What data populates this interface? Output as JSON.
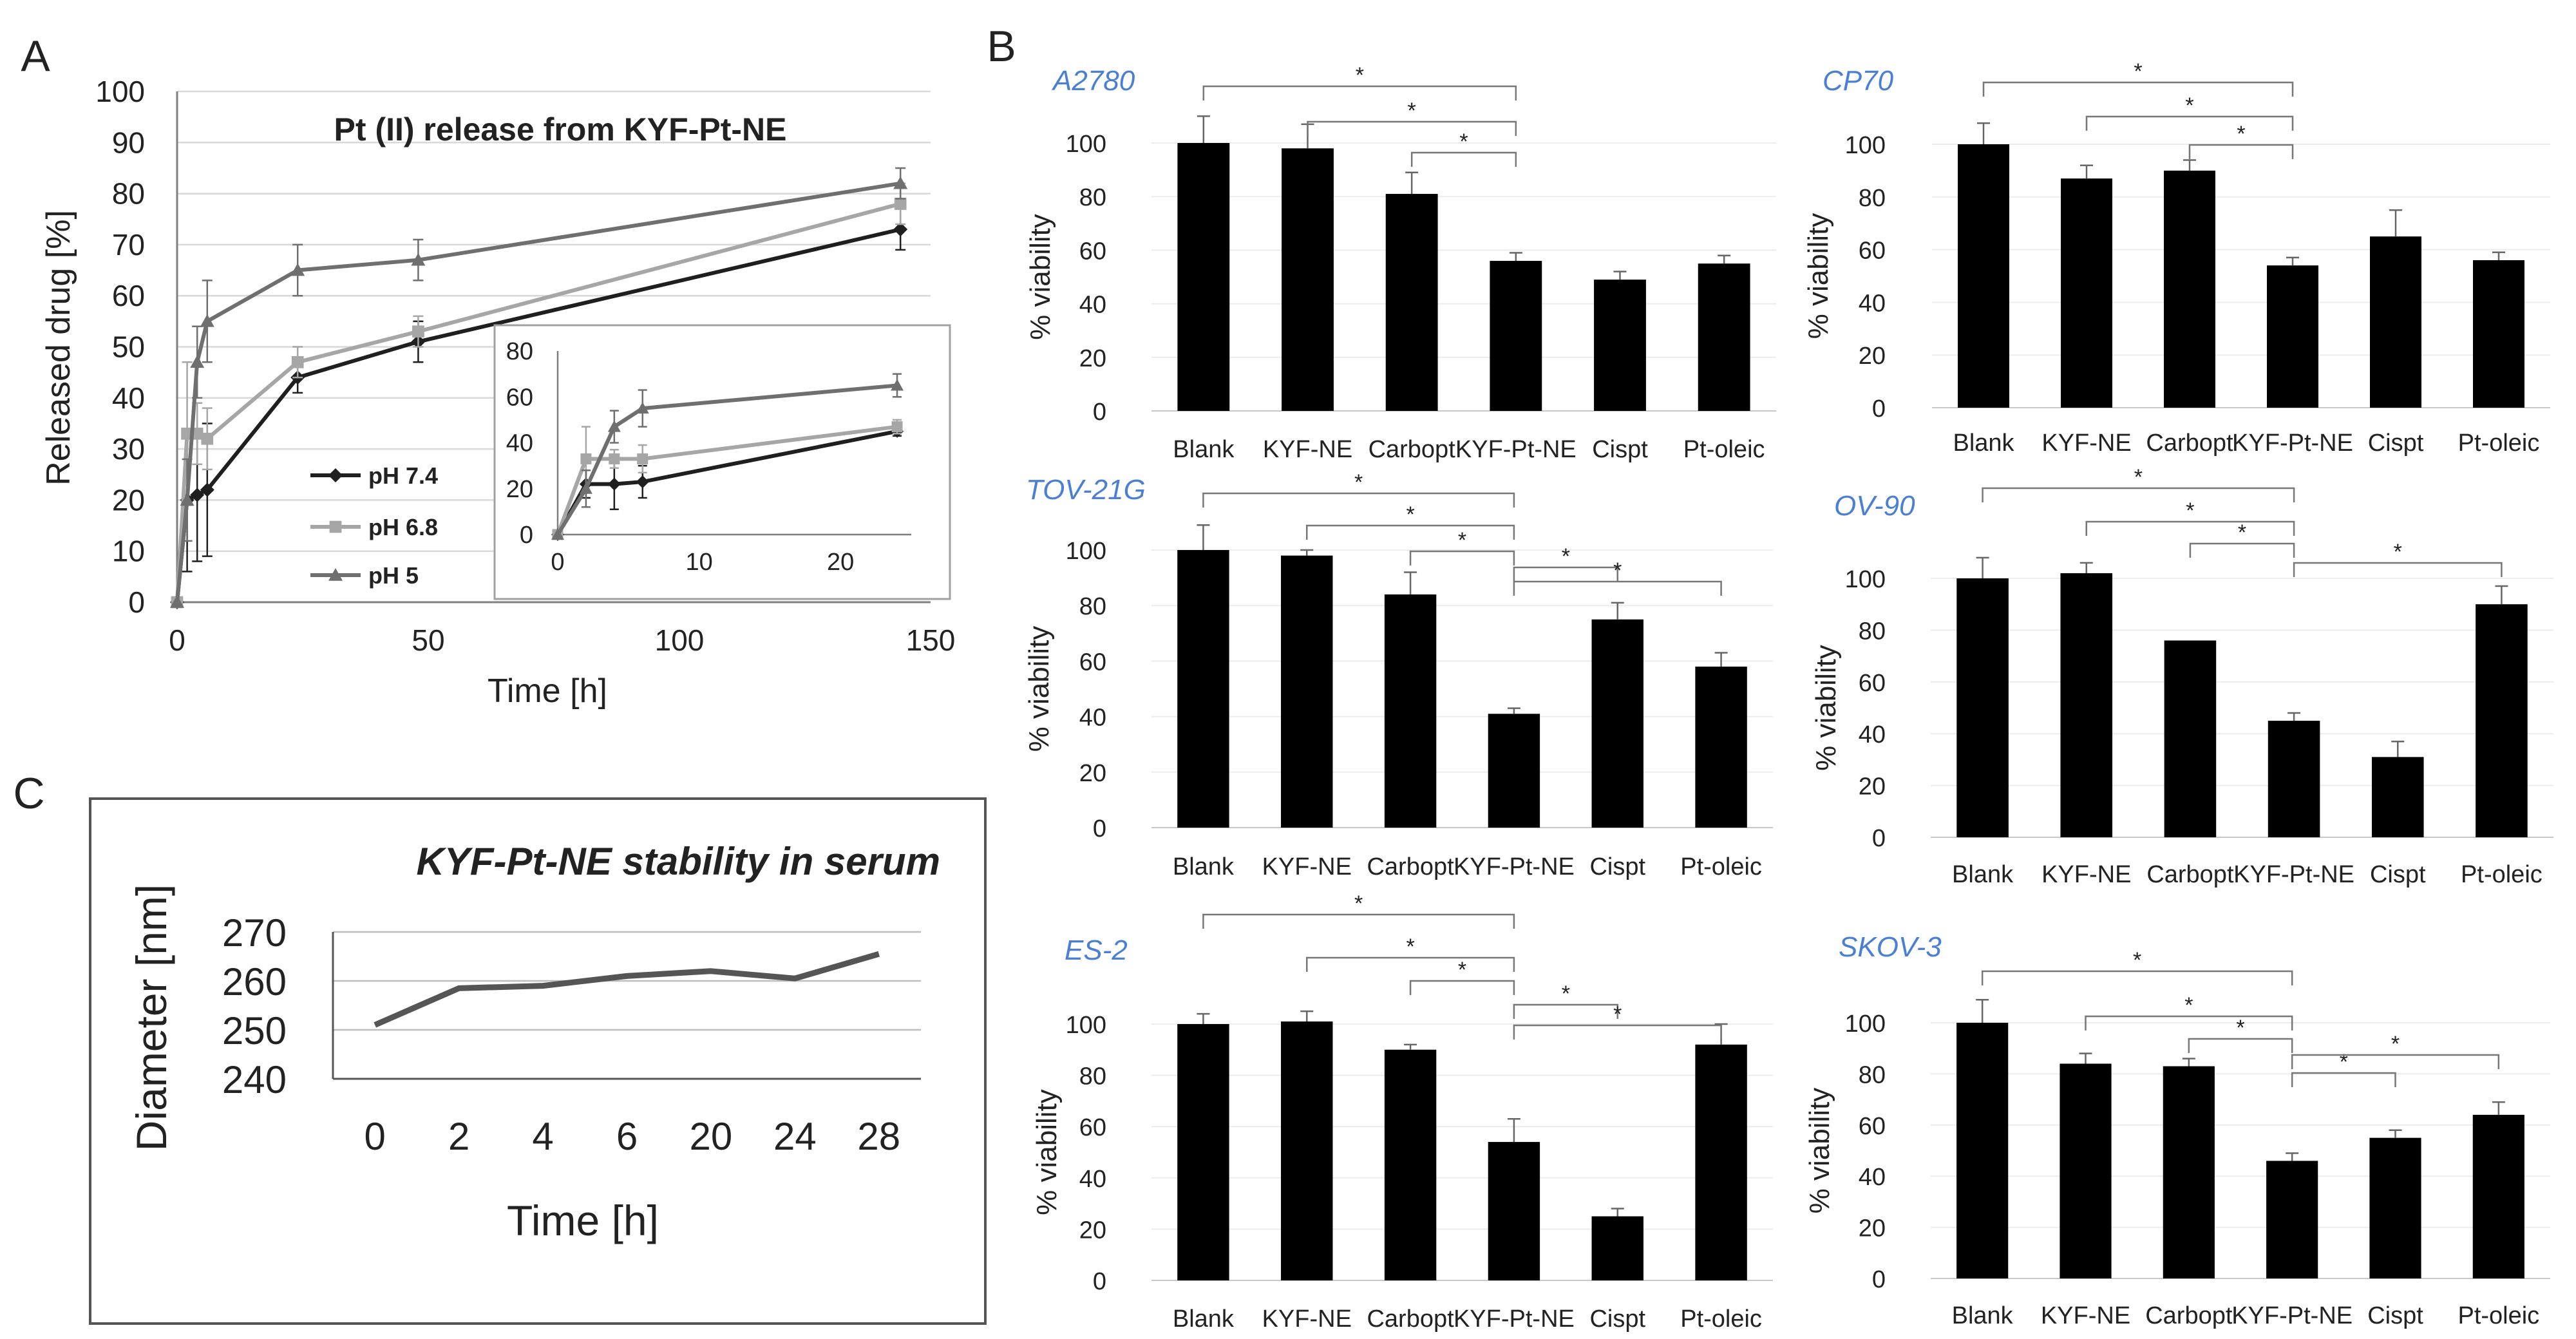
{
  "colors": {
    "black": "#000000",
    "axis": "#7f7f7f",
    "grid": "#d9d9d9",
    "ph74": "#1f1f1f",
    "ph68": "#a6a6a6",
    "ph5": "#6f6f6f",
    "cellLabel": "#4a7fd4",
    "serumLine": "#555555"
  },
  "chart_data": [
    {
      "id": "A",
      "panel_label": "A",
      "type": "line",
      "title": "Pt (II) release from KYF-Pt-NE",
      "xlabel": "Time [h]",
      "ylabel": "Released drug [%]",
      "xlim": [
        0,
        150
      ],
      "ylim": [
        0,
        100
      ],
      "xticks": [
        "0",
        "50",
        "100",
        "150"
      ],
      "yticks": [
        "0",
        "10",
        "20",
        "30",
        "40",
        "50",
        "60",
        "70",
        "80",
        "90",
        "100"
      ],
      "x": [
        0,
        2,
        4,
        6,
        24,
        48,
        144
      ],
      "series": [
        {
          "name": "pH 7.4",
          "marker": "diamond",
          "values": [
            0,
            20,
            21,
            22,
            44,
            51,
            73
          ],
          "errors": [
            0,
            14,
            13,
            13,
            3,
            4,
            4
          ]
        },
        {
          "name": "pH 6.8",
          "marker": "square",
          "values": [
            0,
            33,
            33,
            32,
            47,
            53,
            78
          ],
          "errors": [
            0,
            14,
            6,
            6,
            3,
            3,
            4
          ]
        },
        {
          "name": "pH 5",
          "marker": "triangle",
          "values": [
            0,
            20,
            47,
            55,
            65,
            67,
            82
          ],
          "errors": [
            0,
            8,
            7,
            8,
            5,
            4,
            3
          ]
        }
      ],
      "inset": {
        "xlim": [
          0,
          25
        ],
        "ylim": [
          0,
          80
        ],
        "xticks": [
          "0",
          "10",
          "20"
        ],
        "yticks": [
          "0",
          "20",
          "40",
          "60",
          "80"
        ],
        "x": [
          0,
          2,
          4,
          6,
          24
        ],
        "series": [
          {
            "name": "pH 7.4",
            "values": [
              0,
              22,
              22,
              23,
              45
            ],
            "errors": [
              0,
              6,
              11,
              7,
              2
            ]
          },
          {
            "name": "pH 6.8",
            "values": [
              0,
              33,
              33,
              33,
              47
            ],
            "errors": [
              0,
              14,
              4,
              6,
              3
            ]
          },
          {
            "name": "pH 5",
            "values": [
              0,
              20,
              47,
              55,
              65
            ],
            "errors": [
              0,
              8,
              7,
              8,
              5
            ]
          }
        ]
      }
    },
    {
      "id": "B1",
      "panel_label": "B",
      "type": "bar",
      "cell_line": "A2780",
      "ylabel": "% viability",
      "ylim": [
        0,
        100
      ],
      "yticks": [
        "0",
        "20",
        "40",
        "60",
        "80",
        "100"
      ],
      "categories": [
        "Blank",
        "KYF-NE",
        "Carbopt",
        "KYF-Pt-NE",
        "Cispt",
        "Pt-oleic"
      ],
      "values": [
        100,
        98,
        81,
        56,
        49,
        55
      ],
      "errors": [
        10,
        9,
        8,
        3,
        3,
        3
      ],
      "significance": [
        {
          "from": 0,
          "to": 3,
          "label": "*"
        },
        {
          "from": 1,
          "to": 3,
          "label": "*"
        },
        {
          "from": 2,
          "to": 3,
          "label": "*"
        }
      ]
    },
    {
      "id": "B2",
      "type": "bar",
      "cell_line": "CP70",
      "ylabel": "% viability",
      "ylim": [
        0,
        100
      ],
      "yticks": [
        "0",
        "20",
        "40",
        "60",
        "80",
        "100"
      ],
      "categories": [
        "Blank",
        "KYF-NE",
        "Carbopt",
        "KYF-Pt-NE",
        "Cispt",
        "Pt-oleic"
      ],
      "values": [
        100,
        87,
        90,
        54,
        65,
        56
      ],
      "errors": [
        8,
        5,
        4,
        3,
        10,
        3
      ],
      "significance": [
        {
          "from": 0,
          "to": 3,
          "label": "*"
        },
        {
          "from": 1,
          "to": 3,
          "label": "*"
        },
        {
          "from": 2,
          "to": 3,
          "label": "*"
        }
      ]
    },
    {
      "id": "B3",
      "type": "bar",
      "cell_line": "TOV-21G",
      "ylabel": "% viability",
      "ylim": [
        0,
        100
      ],
      "yticks": [
        "0",
        "20",
        "40",
        "60",
        "80",
        "100"
      ],
      "categories": [
        "Blank",
        "KYF-NE",
        "Carbopt",
        "KYF-Pt-NE",
        "Cispt",
        "Pt-oleic"
      ],
      "values": [
        100,
        98,
        84,
        41,
        75,
        58
      ],
      "errors": [
        9,
        2,
        8,
        2,
        6,
        5
      ],
      "significance": [
        {
          "from": 0,
          "to": 3,
          "label": "*"
        },
        {
          "from": 1,
          "to": 3,
          "label": "*"
        },
        {
          "from": 2,
          "to": 3,
          "label": "*"
        },
        {
          "from": 3,
          "to": 4,
          "label": "*"
        },
        {
          "from": 3,
          "to": 5,
          "label": "*"
        }
      ]
    },
    {
      "id": "B4",
      "type": "bar",
      "cell_line": "OV-90",
      "ylabel": "% viability",
      "ylim": [
        0,
        100
      ],
      "yticks": [
        "0",
        "20",
        "40",
        "60",
        "80",
        "100"
      ],
      "categories": [
        "Blank",
        "KYF-NE",
        "Carbopt",
        "KYF-Pt-NE",
        "Cispt",
        "Pt-oleic"
      ],
      "values": [
        100,
        102,
        76,
        45,
        31,
        90
      ],
      "errors": [
        8,
        4,
        0,
        3,
        6,
        7
      ],
      "significance": [
        {
          "from": 0,
          "to": 3,
          "label": "*"
        },
        {
          "from": 1,
          "to": 3,
          "label": "*"
        },
        {
          "from": 2,
          "to": 3,
          "label": "*"
        },
        {
          "from": 3,
          "to": 5,
          "label": "*"
        }
      ]
    },
    {
      "id": "B5",
      "type": "bar",
      "cell_line": "ES-2",
      "ylabel": "% viability",
      "ylim": [
        0,
        100
      ],
      "yticks": [
        "0",
        "20",
        "40",
        "60",
        "80",
        "100"
      ],
      "categories": [
        "Blank",
        "KYF-NE",
        "Carbopt",
        "KYF-Pt-NE",
        "Cispt",
        "Pt-oleic"
      ],
      "values": [
        100,
        101,
        90,
        54,
        25,
        92
      ],
      "errors": [
        4,
        4,
        2,
        9,
        3,
        8
      ],
      "significance": [
        {
          "from": 0,
          "to": 3,
          "label": "*"
        },
        {
          "from": 1,
          "to": 3,
          "label": "*"
        },
        {
          "from": 2,
          "to": 3,
          "label": "*"
        },
        {
          "from": 3,
          "to": 4,
          "label": "*"
        },
        {
          "from": 3,
          "to": 5,
          "label": "*"
        }
      ]
    },
    {
      "id": "B6",
      "type": "bar",
      "cell_line": "SKOV-3",
      "ylabel": "% viability",
      "ylim": [
        0,
        100
      ],
      "yticks": [
        "0",
        "20",
        "40",
        "60",
        "80",
        "100"
      ],
      "categories": [
        "Blank",
        "KYF-NE",
        "Carbopt",
        "KYF-Pt-NE",
        "Cispt",
        "Pt-oleic"
      ],
      "values": [
        100,
        84,
        83,
        46,
        55,
        64
      ],
      "errors": [
        9,
        4,
        3,
        3,
        3,
        5
      ],
      "significance": [
        {
          "from": 0,
          "to": 3,
          "label": "*"
        },
        {
          "from": 1,
          "to": 3,
          "label": "*"
        },
        {
          "from": 2,
          "to": 3,
          "label": "*"
        },
        {
          "from": 3,
          "to": 4,
          "label": "*"
        },
        {
          "from": 3,
          "to": 5,
          "label": "*"
        }
      ]
    },
    {
      "id": "C",
      "panel_label": "C",
      "type": "line",
      "title": "KYF-Pt-NE stability in serum",
      "xlabel": "Time [h]",
      "ylabel": "Diameter [nm]",
      "ylim": [
        240,
        270
      ],
      "yticks": [
        "240",
        "250",
        "260",
        "270"
      ],
      "categories": [
        "0",
        "2",
        "4",
        "6",
        "20",
        "24",
        "28"
      ],
      "values": [
        251,
        258.5,
        259,
        261,
        262,
        260.5,
        265.5
      ]
    }
  ]
}
